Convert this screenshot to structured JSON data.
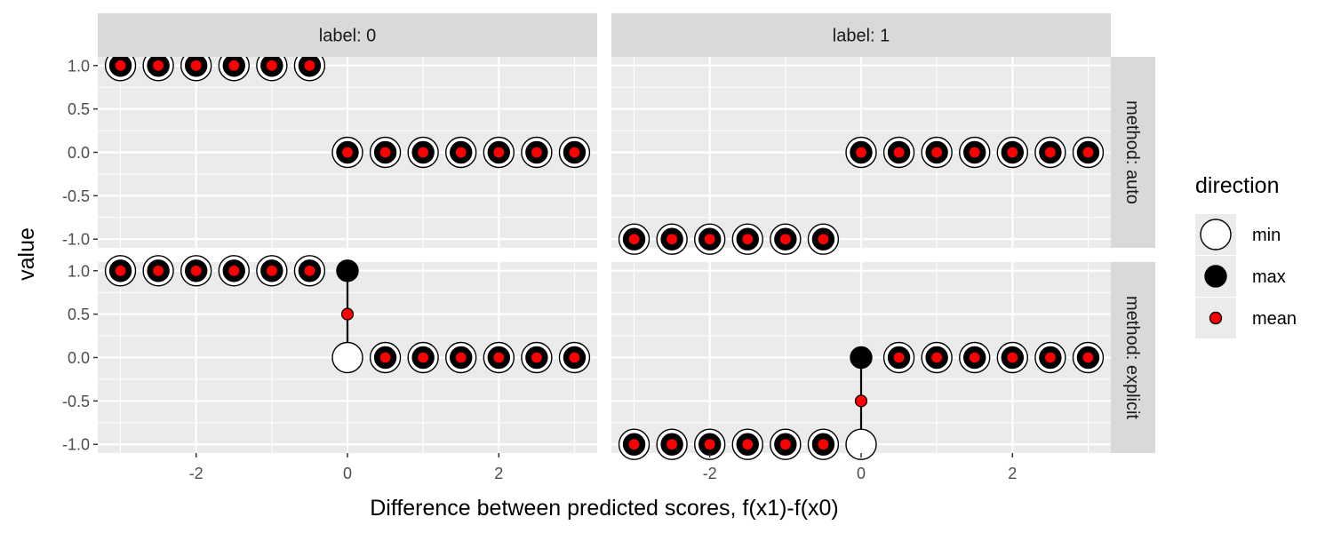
{
  "chart_data": {
    "type": "scatter",
    "xlabel": "Difference between predicted scores, f(x1)-f(x0)",
    "ylabel": "value",
    "xlim": [
      -3.3,
      3.3
    ],
    "ylim": [
      -1.1,
      1.1
    ],
    "x_ticks": [
      -2,
      0,
      2
    ],
    "x_tick_labels": [
      "-2",
      "0",
      "2"
    ],
    "y_ticks": [
      -1,
      -0.5,
      0,
      0.5,
      1
    ],
    "y_tick_labels": [
      "-1.0",
      "-0.5",
      "0.0",
      "0.5",
      "1.0"
    ],
    "grid": true,
    "legend": {
      "title": "direction",
      "placement": "right",
      "entries": [
        {
          "label": "min",
          "fill": "#ffffff",
          "stroke": "#000000"
        },
        {
          "label": "max",
          "fill": "#000000",
          "stroke": "#000000"
        },
        {
          "label": "mean",
          "fill": "#ff0000",
          "stroke": "#000000"
        }
      ]
    },
    "colors": {
      "panel_bg": "#ebebeb",
      "strip_bg": "#d9d9d9",
      "grid": "#ffffff",
      "mean": "#ff0000",
      "max": "#000000",
      "min": "#ffffff"
    },
    "facets": {
      "columns": [
        "label: 0",
        "label: 1"
      ],
      "rows": [
        "method: auto",
        "method: explicit"
      ]
    },
    "panels": [
      {
        "col": 0,
        "row": 0,
        "points": [
          {
            "x": -3,
            "min": 1,
            "max": 1,
            "mean": 1
          },
          {
            "x": -2.5,
            "min": 1,
            "max": 1,
            "mean": 1
          },
          {
            "x": -2,
            "min": 1,
            "max": 1,
            "mean": 1
          },
          {
            "x": -1.5,
            "min": 1,
            "max": 1,
            "mean": 1
          },
          {
            "x": -1,
            "min": 1,
            "max": 1,
            "mean": 1
          },
          {
            "x": -0.5,
            "min": 1,
            "max": 1,
            "mean": 1
          },
          {
            "x": 0,
            "min": 0,
            "max": 0,
            "mean": 0
          },
          {
            "x": 0.5,
            "min": 0,
            "max": 0,
            "mean": 0
          },
          {
            "x": 1,
            "min": 0,
            "max": 0,
            "mean": 0
          },
          {
            "x": 1.5,
            "min": 0,
            "max": 0,
            "mean": 0
          },
          {
            "x": 2,
            "min": 0,
            "max": 0,
            "mean": 0
          },
          {
            "x": 2.5,
            "min": 0,
            "max": 0,
            "mean": 0
          },
          {
            "x": 3,
            "min": 0,
            "max": 0,
            "mean": 0
          }
        ]
      },
      {
        "col": 1,
        "row": 0,
        "points": [
          {
            "x": -3,
            "min": -1,
            "max": -1,
            "mean": -1
          },
          {
            "x": -2.5,
            "min": -1,
            "max": -1,
            "mean": -1
          },
          {
            "x": -2,
            "min": -1,
            "max": -1,
            "mean": -1
          },
          {
            "x": -1.5,
            "min": -1,
            "max": -1,
            "mean": -1
          },
          {
            "x": -1,
            "min": -1,
            "max": -1,
            "mean": -1
          },
          {
            "x": -0.5,
            "min": -1,
            "max": -1,
            "mean": -1
          },
          {
            "x": 0,
            "min": 0,
            "max": 0,
            "mean": 0
          },
          {
            "x": 0.5,
            "min": 0,
            "max": 0,
            "mean": 0
          },
          {
            "x": 1,
            "min": 0,
            "max": 0,
            "mean": 0
          },
          {
            "x": 1.5,
            "min": 0,
            "max": 0,
            "mean": 0
          },
          {
            "x": 2,
            "min": 0,
            "max": 0,
            "mean": 0
          },
          {
            "x": 2.5,
            "min": 0,
            "max": 0,
            "mean": 0
          },
          {
            "x": 3,
            "min": 0,
            "max": 0,
            "mean": 0
          }
        ]
      },
      {
        "col": 0,
        "row": 1,
        "points": [
          {
            "x": -3,
            "min": 1,
            "max": 1,
            "mean": 1
          },
          {
            "x": -2.5,
            "min": 1,
            "max": 1,
            "mean": 1
          },
          {
            "x": -2,
            "min": 1,
            "max": 1,
            "mean": 1
          },
          {
            "x": -1.5,
            "min": 1,
            "max": 1,
            "mean": 1
          },
          {
            "x": -1,
            "min": 1,
            "max": 1,
            "mean": 1
          },
          {
            "x": -0.5,
            "min": 1,
            "max": 1,
            "mean": 1
          },
          {
            "x": 0,
            "min": 0,
            "max": 1,
            "mean": 0.5
          },
          {
            "x": 0.5,
            "min": 0,
            "max": 0,
            "mean": 0
          },
          {
            "x": 1,
            "min": 0,
            "max": 0,
            "mean": 0
          },
          {
            "x": 1.5,
            "min": 0,
            "max": 0,
            "mean": 0
          },
          {
            "x": 2,
            "min": 0,
            "max": 0,
            "mean": 0
          },
          {
            "x": 2.5,
            "min": 0,
            "max": 0,
            "mean": 0
          },
          {
            "x": 3,
            "min": 0,
            "max": 0,
            "mean": 0
          }
        ]
      },
      {
        "col": 1,
        "row": 1,
        "points": [
          {
            "x": -3,
            "min": -1,
            "max": -1,
            "mean": -1
          },
          {
            "x": -2.5,
            "min": -1,
            "max": -1,
            "mean": -1
          },
          {
            "x": -2,
            "min": -1,
            "max": -1,
            "mean": -1
          },
          {
            "x": -1.5,
            "min": -1,
            "max": -1,
            "mean": -1
          },
          {
            "x": -1,
            "min": -1,
            "max": -1,
            "mean": -1
          },
          {
            "x": -0.5,
            "min": -1,
            "max": -1,
            "mean": -1
          },
          {
            "x": 0,
            "min": -1,
            "max": 0,
            "mean": -0.5
          },
          {
            "x": 0.5,
            "min": 0,
            "max": 0,
            "mean": 0
          },
          {
            "x": 1,
            "min": 0,
            "max": 0,
            "mean": 0
          },
          {
            "x": 1.5,
            "min": 0,
            "max": 0,
            "mean": 0
          },
          {
            "x": 2,
            "min": 0,
            "max": 0,
            "mean": 0
          },
          {
            "x": 2.5,
            "min": 0,
            "max": 0,
            "mean": 0
          },
          {
            "x": 3,
            "min": 0,
            "max": 0,
            "mean": 0
          }
        ]
      }
    ]
  }
}
